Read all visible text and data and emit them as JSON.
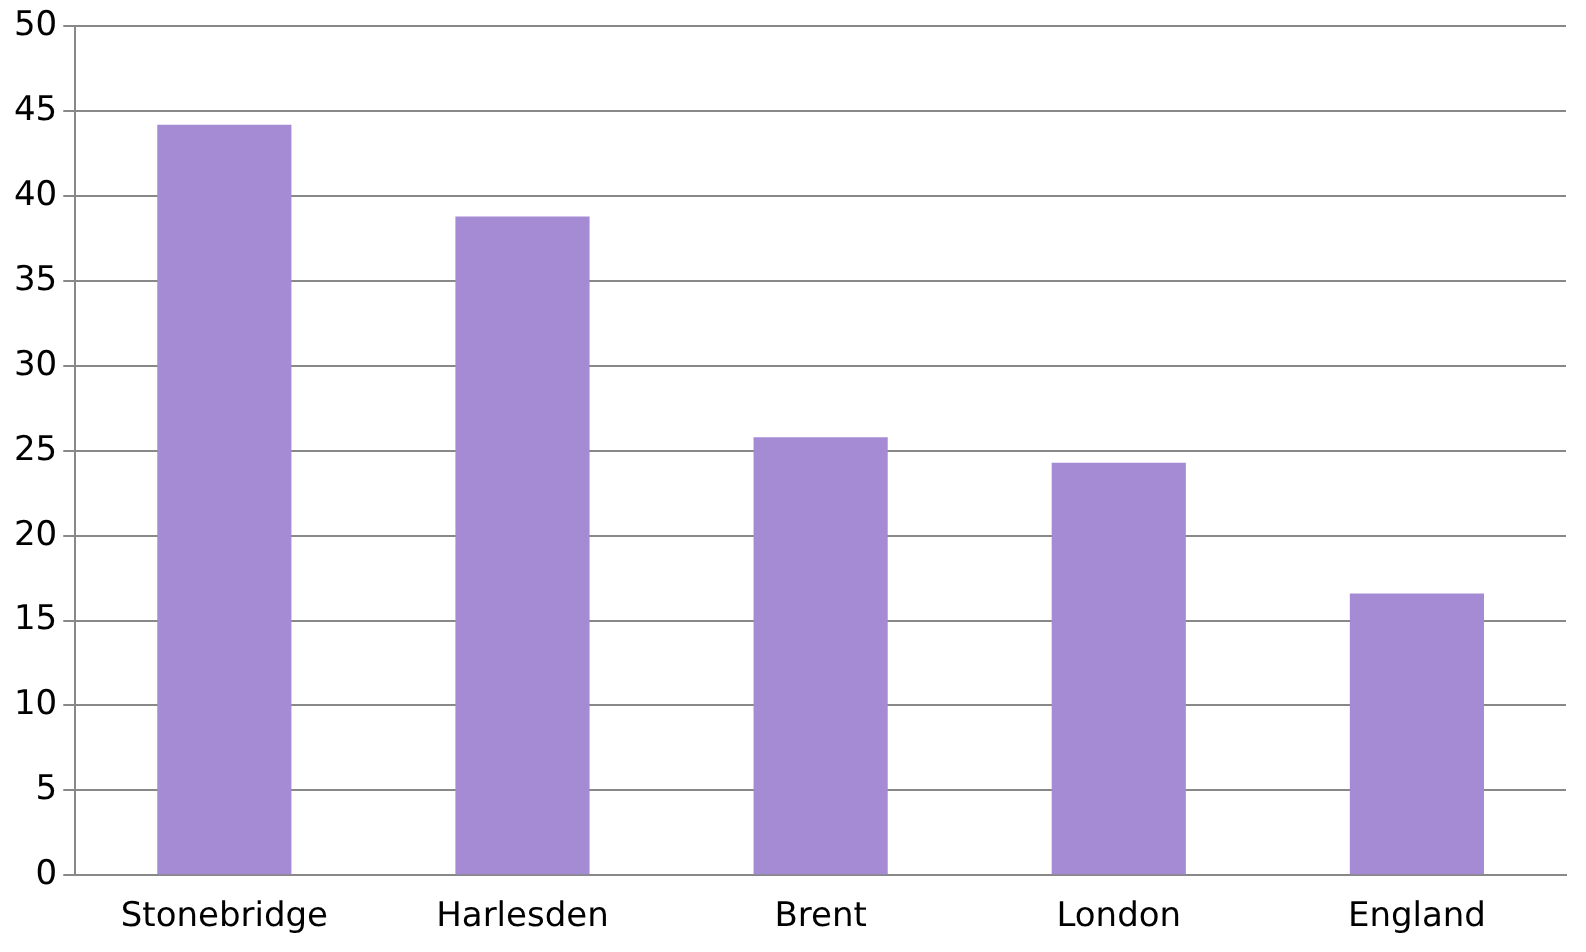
{
  "chart_data": {
    "type": "bar",
    "categories": [
      "Stonebridge",
      "Harlesden",
      "Brent",
      "London",
      "England"
    ],
    "values": [
      44.2,
      38.8,
      25.8,
      24.3,
      16.6
    ],
    "color": "#a58bd3",
    "ylim": [
      0,
      50
    ],
    "yticks": [
      0,
      5,
      10,
      15,
      20,
      25,
      30,
      35,
      40,
      45,
      50
    ],
    "grid": "y",
    "legend": false
  }
}
